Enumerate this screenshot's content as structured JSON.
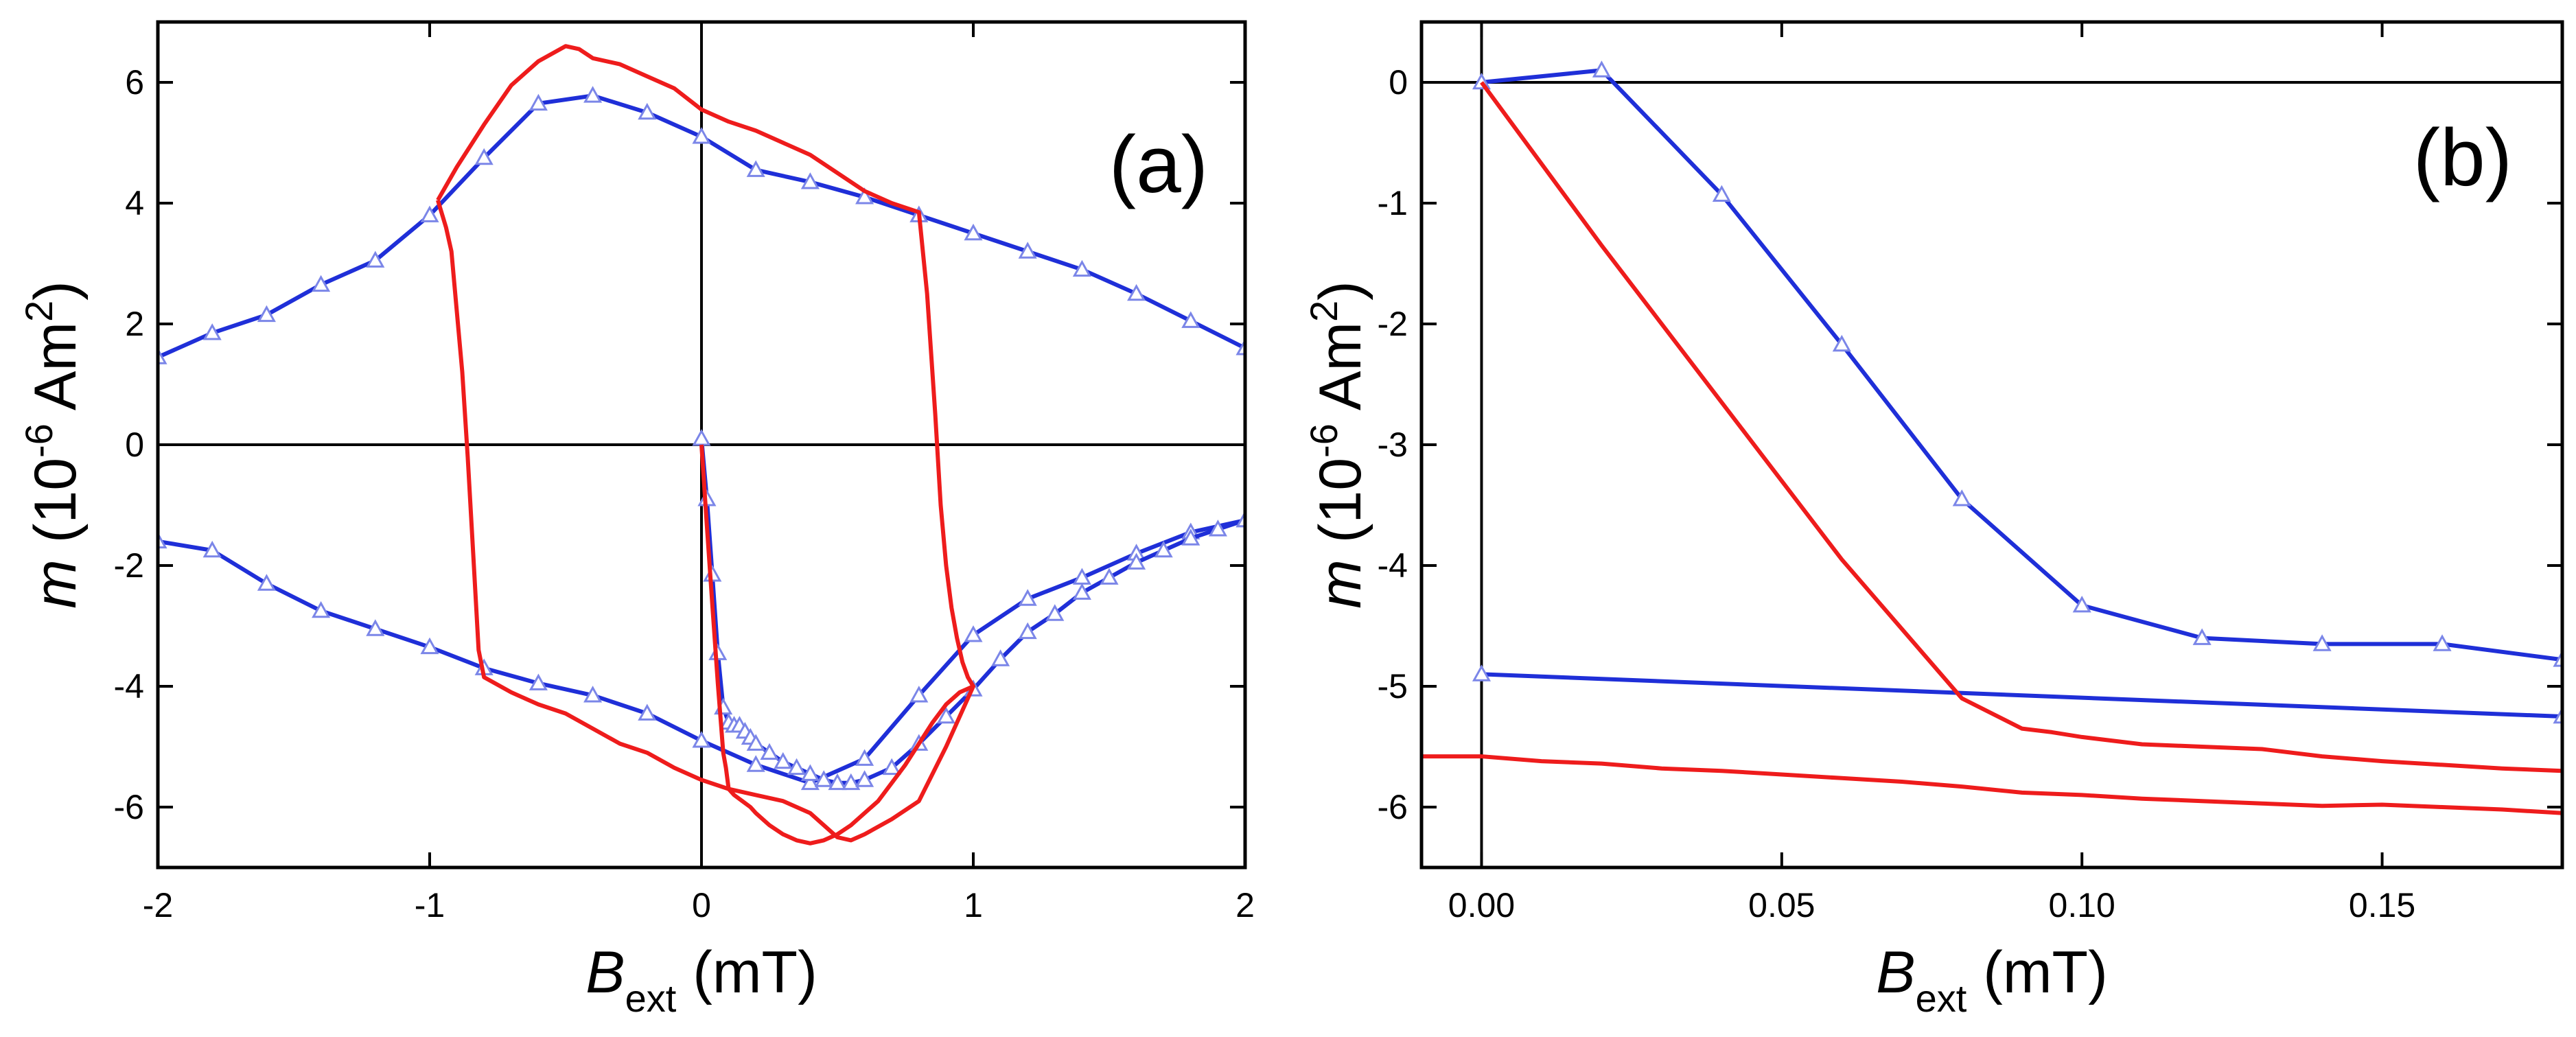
{
  "colors": {
    "blue": "#1f2fd8",
    "red": "#ee1c1c",
    "marker": "#7b86e8",
    "axis": "#000000"
  },
  "chart_data": [
    {
      "id": "a",
      "type": "line",
      "panel_label": "(a)",
      "xlabel": {
        "main": "B",
        "sub": "ext",
        "unit": " (mT)"
      },
      "ylabel": {
        "main": "m",
        "open": " (10",
        "sup": "-6",
        "unit": " Am",
        "sup2": "2",
        "close": ")"
      },
      "xlim": [
        -2,
        2
      ],
      "ylim": [
        -7,
        7
      ],
      "xticks": [
        -2,
        -1,
        0,
        1,
        2
      ],
      "yticks": [
        -6,
        -4,
        -2,
        0,
        2,
        4,
        6
      ],
      "xtick_labels": [
        "-2",
        "-1",
        "0",
        "1",
        "2"
      ],
      "ytick_labels": [
        "-6",
        "-4",
        "-2",
        "0",
        "2",
        "4",
        "6"
      ],
      "series": [
        {
          "name": "blue-upper",
          "color": "blue",
          "markers": true,
          "x": [
            -2,
            -1.8,
            -1.6,
            -1.4,
            -1.2,
            -1.0,
            -0.8,
            -0.6,
            -0.4,
            -0.2,
            0.0,
            0.2,
            0.4,
            0.6,
            0.8,
            1.0,
            1.2,
            1.4,
            1.6,
            1.8,
            2.0
          ],
          "y": [
            1.45,
            1.85,
            2.15,
            2.65,
            3.05,
            3.8,
            4.75,
            5.65,
            5.78,
            5.5,
            5.1,
            4.55,
            4.35,
            4.1,
            3.8,
            3.5,
            3.2,
            2.9,
            2.5,
            2.05,
            1.6
          ]
        },
        {
          "name": "blue-lower",
          "color": "blue",
          "markers": true,
          "x": [
            -2,
            -1.8,
            -1.6,
            -1.4,
            -1.2,
            -1.0,
            -0.8,
            -0.6,
            -0.4,
            -0.2,
            0.0,
            0.2,
            0.4,
            0.6,
            0.8,
            1.0,
            1.2,
            1.4,
            1.6,
            1.8,
            2.0
          ],
          "y": [
            -1.6,
            -1.75,
            -2.3,
            -2.75,
            -3.05,
            -3.35,
            -3.7,
            -3.95,
            -4.15,
            -4.45,
            -4.9,
            -5.3,
            -5.6,
            -5.2,
            -4.15,
            -3.15,
            -2.55,
            -2.2,
            -1.8,
            -1.45,
            -1.25
          ]
        },
        {
          "name": "blue-virgin",
          "color": "blue",
          "markers": true,
          "x": [
            0.0,
            0.02,
            0.04,
            0.06,
            0.08,
            0.1,
            0.12,
            0.14,
            0.16,
            0.18,
            0.2,
            0.25,
            0.3,
            0.35,
            0.4,
            0.45,
            0.5,
            0.55,
            0.6,
            0.7,
            0.8,
            0.9,
            1.0,
            1.1,
            1.2,
            1.3,
            1.4,
            1.5,
            1.6,
            1.7,
            1.8,
            1.9,
            2.0
          ],
          "y": [
            0.1,
            -0.9,
            -2.15,
            -3.45,
            -4.35,
            -4.6,
            -4.65,
            -4.65,
            -4.75,
            -4.85,
            -4.95,
            -5.1,
            -5.25,
            -5.35,
            -5.45,
            -5.55,
            -5.6,
            -5.6,
            -5.55,
            -5.35,
            -4.95,
            -4.5,
            -4.05,
            -3.55,
            -3.1,
            -2.8,
            -2.45,
            -2.2,
            -1.95,
            -1.75,
            -1.55,
            -1.4,
            -1.25
          ]
        },
        {
          "name": "red-loop",
          "color": "red",
          "markers": false,
          "x": [
            -0.97,
            -0.9,
            -0.8,
            -0.7,
            -0.6,
            -0.5,
            -0.45,
            -0.4,
            -0.3,
            -0.2,
            -0.1,
            0.0,
            0.1,
            0.2,
            0.3,
            0.4,
            0.5,
            0.6,
            0.7,
            0.8,
            0.83,
            0.86,
            0.88,
            0.9,
            0.92,
            0.94,
            0.96,
            0.98,
            1.0,
            0.9,
            0.8,
            0.7,
            0.6,
            0.55,
            0.5,
            0.45,
            0.4,
            0.3,
            0.2,
            0.1,
            0.0,
            -0.1,
            -0.2,
            -0.3,
            -0.4,
            -0.5,
            -0.6,
            -0.7,
            -0.8,
            -0.82,
            -0.84,
            -0.86,
            -0.88,
            -0.9,
            -0.92,
            -0.94,
            -0.96,
            -0.97
          ],
          "y": [
            4.05,
            4.6,
            5.3,
            5.95,
            6.35,
            6.6,
            6.55,
            6.4,
            6.3,
            6.1,
            5.9,
            5.55,
            5.35,
            5.2,
            5.0,
            4.8,
            4.5,
            4.2,
            4.0,
            3.85,
            2.5,
            0.5,
            -1.0,
            -2.0,
            -2.7,
            -3.2,
            -3.6,
            -3.85,
            -4.0,
            -5.0,
            -5.9,
            -6.2,
            -6.45,
            -6.55,
            -6.5,
            -6.3,
            -6.1,
            -5.9,
            -5.8,
            -5.7,
            -5.55,
            -5.35,
            -5.1,
            -4.95,
            -4.7,
            -4.45,
            -4.3,
            -4.1,
            -3.85,
            -3.4,
            -1.8,
            -0.2,
            1.2,
            2.2,
            3.2,
            3.6,
            3.9,
            4.05
          ]
        },
        {
          "name": "red-virgin",
          "color": "red",
          "markers": false,
          "x": [
            0.0,
            0.02,
            0.04,
            0.06,
            0.08,
            0.09,
            0.1,
            0.12,
            0.15,
            0.18,
            0.2,
            0.25,
            0.3,
            0.35,
            0.4,
            0.45,
            0.5,
            0.55,
            0.6,
            0.65,
            0.7,
            0.75,
            0.8,
            0.85,
            0.9,
            0.95,
            1.0
          ],
          "y": [
            0.0,
            -1.35,
            -2.65,
            -3.95,
            -5.1,
            -5.35,
            -5.7,
            -5.8,
            -5.9,
            -6.0,
            -6.1,
            -6.3,
            -6.45,
            -6.55,
            -6.6,
            -6.55,
            -6.45,
            -6.3,
            -6.1,
            -5.9,
            -5.6,
            -5.3,
            -4.95,
            -4.6,
            -4.3,
            -4.1,
            -4.0
          ]
        }
      ]
    },
    {
      "id": "b",
      "type": "line",
      "panel_label": "(b)",
      "xlabel": {
        "main": "B",
        "sub": "ext",
        "unit": " (mT)"
      },
      "ylabel": {
        "main": "m",
        "open": " (10",
        "sup": "-6",
        "unit": " Am",
        "sup2": "2",
        "close": ")"
      },
      "xlim": [
        -0.01,
        0.18
      ],
      "ylim": [
        -6.5,
        0.5
      ],
      "xticks": [
        0.0,
        0.05,
        0.1,
        0.15
      ],
      "yticks": [
        -6,
        -5,
        -4,
        -3,
        -2,
        -1,
        0
      ],
      "xtick_labels": [
        "0.00",
        "0.05",
        "0.10",
        "0.15"
      ],
      "ytick_labels": [
        "-6",
        "-5",
        "-4",
        "-3",
        "-2",
        "-1",
        "0"
      ],
      "series": [
        {
          "name": "blue-virgin",
          "color": "blue",
          "markers": true,
          "x": [
            0.0,
            0.02,
            0.04,
            0.06,
            0.08,
            0.1,
            0.12,
            0.14,
            0.16,
            0.18
          ],
          "y": [
            0.0,
            0.1,
            -0.93,
            -2.17,
            -3.45,
            -4.33,
            -4.6,
            -4.65,
            -4.65,
            -4.78
          ]
        },
        {
          "name": "blue-branch",
          "color": "blue",
          "markers": true,
          "x": [
            0.0,
            0.18
          ],
          "y": [
            -4.9,
            -5.25
          ]
        },
        {
          "name": "red-virgin",
          "color": "red",
          "markers": false,
          "x": [
            0.0,
            0.02,
            0.04,
            0.06,
            0.08,
            0.09,
            0.095,
            0.1,
            0.11,
            0.12,
            0.13,
            0.14,
            0.15,
            0.16,
            0.17,
            0.18
          ],
          "y": [
            0.0,
            -1.35,
            -2.65,
            -3.95,
            -5.1,
            -5.35,
            -5.38,
            -5.42,
            -5.48,
            -5.5,
            -5.52,
            -5.58,
            -5.62,
            -5.65,
            -5.68,
            -5.7
          ]
        },
        {
          "name": "red-branch",
          "color": "red",
          "markers": false,
          "x": [
            -0.01,
            0.0,
            0.01,
            0.02,
            0.03,
            0.04,
            0.05,
            0.06,
            0.07,
            0.08,
            0.09,
            0.1,
            0.11,
            0.12,
            0.13,
            0.14,
            0.15,
            0.16,
            0.17,
            0.18
          ],
          "y": [
            -5.58,
            -5.58,
            -5.62,
            -5.64,
            -5.68,
            -5.7,
            -5.73,
            -5.76,
            -5.79,
            -5.83,
            -5.88,
            -5.9,
            -5.93,
            -5.95,
            -5.97,
            -5.99,
            -5.98,
            -6.0,
            -6.02,
            -6.05
          ]
        }
      ]
    }
  ]
}
